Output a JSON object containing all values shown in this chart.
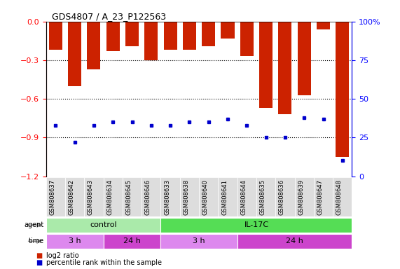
{
  "title": "GDS4807 / A_23_P122563",
  "samples": [
    "GSM808637",
    "GSM808642",
    "GSM808643",
    "GSM808634",
    "GSM808645",
    "GSM808646",
    "GSM808633",
    "GSM808638",
    "GSM808640",
    "GSM808641",
    "GSM808644",
    "GSM808635",
    "GSM808636",
    "GSM808639",
    "GSM808647",
    "GSM808648"
  ],
  "log2_ratio": [
    -0.22,
    -0.5,
    -0.37,
    -0.23,
    -0.19,
    -0.3,
    -0.22,
    -0.22,
    -0.19,
    -0.13,
    -0.27,
    -0.67,
    -0.72,
    -0.57,
    -0.06,
    -1.05
  ],
  "percentile": [
    33,
    22,
    33,
    35,
    35,
    33,
    33,
    35,
    35,
    37,
    33,
    25,
    25,
    38,
    37,
    10
  ],
  "bar_color": "#cc2200",
  "dot_color": "#0000cc",
  "ylim_left": [
    -1.2,
    0
  ],
  "ylim_right": [
    0,
    100
  ],
  "yticks_left": [
    0,
    -0.3,
    -0.6,
    -0.9,
    -1.2
  ],
  "yticks_right": [
    0,
    25,
    50,
    75,
    100
  ],
  "ytick_labels_right": [
    "0",
    "25",
    "50",
    "75",
    "100%"
  ],
  "control_color": "#aaeaaa",
  "il17c_color": "#55dd55",
  "time_3h_color": "#dd88ee",
  "time_24h_color": "#cc44cc",
  "agent_label_control": "control",
  "agent_label_il17c": "IL-17C",
  "time_label_3h": "3 h",
  "time_label_24h": "24 h",
  "legend_log2_color": "#cc2200",
  "legend_pct_color": "#0000cc",
  "background_color": "#ffffff",
  "tick_bg_color": "#dddddd"
}
